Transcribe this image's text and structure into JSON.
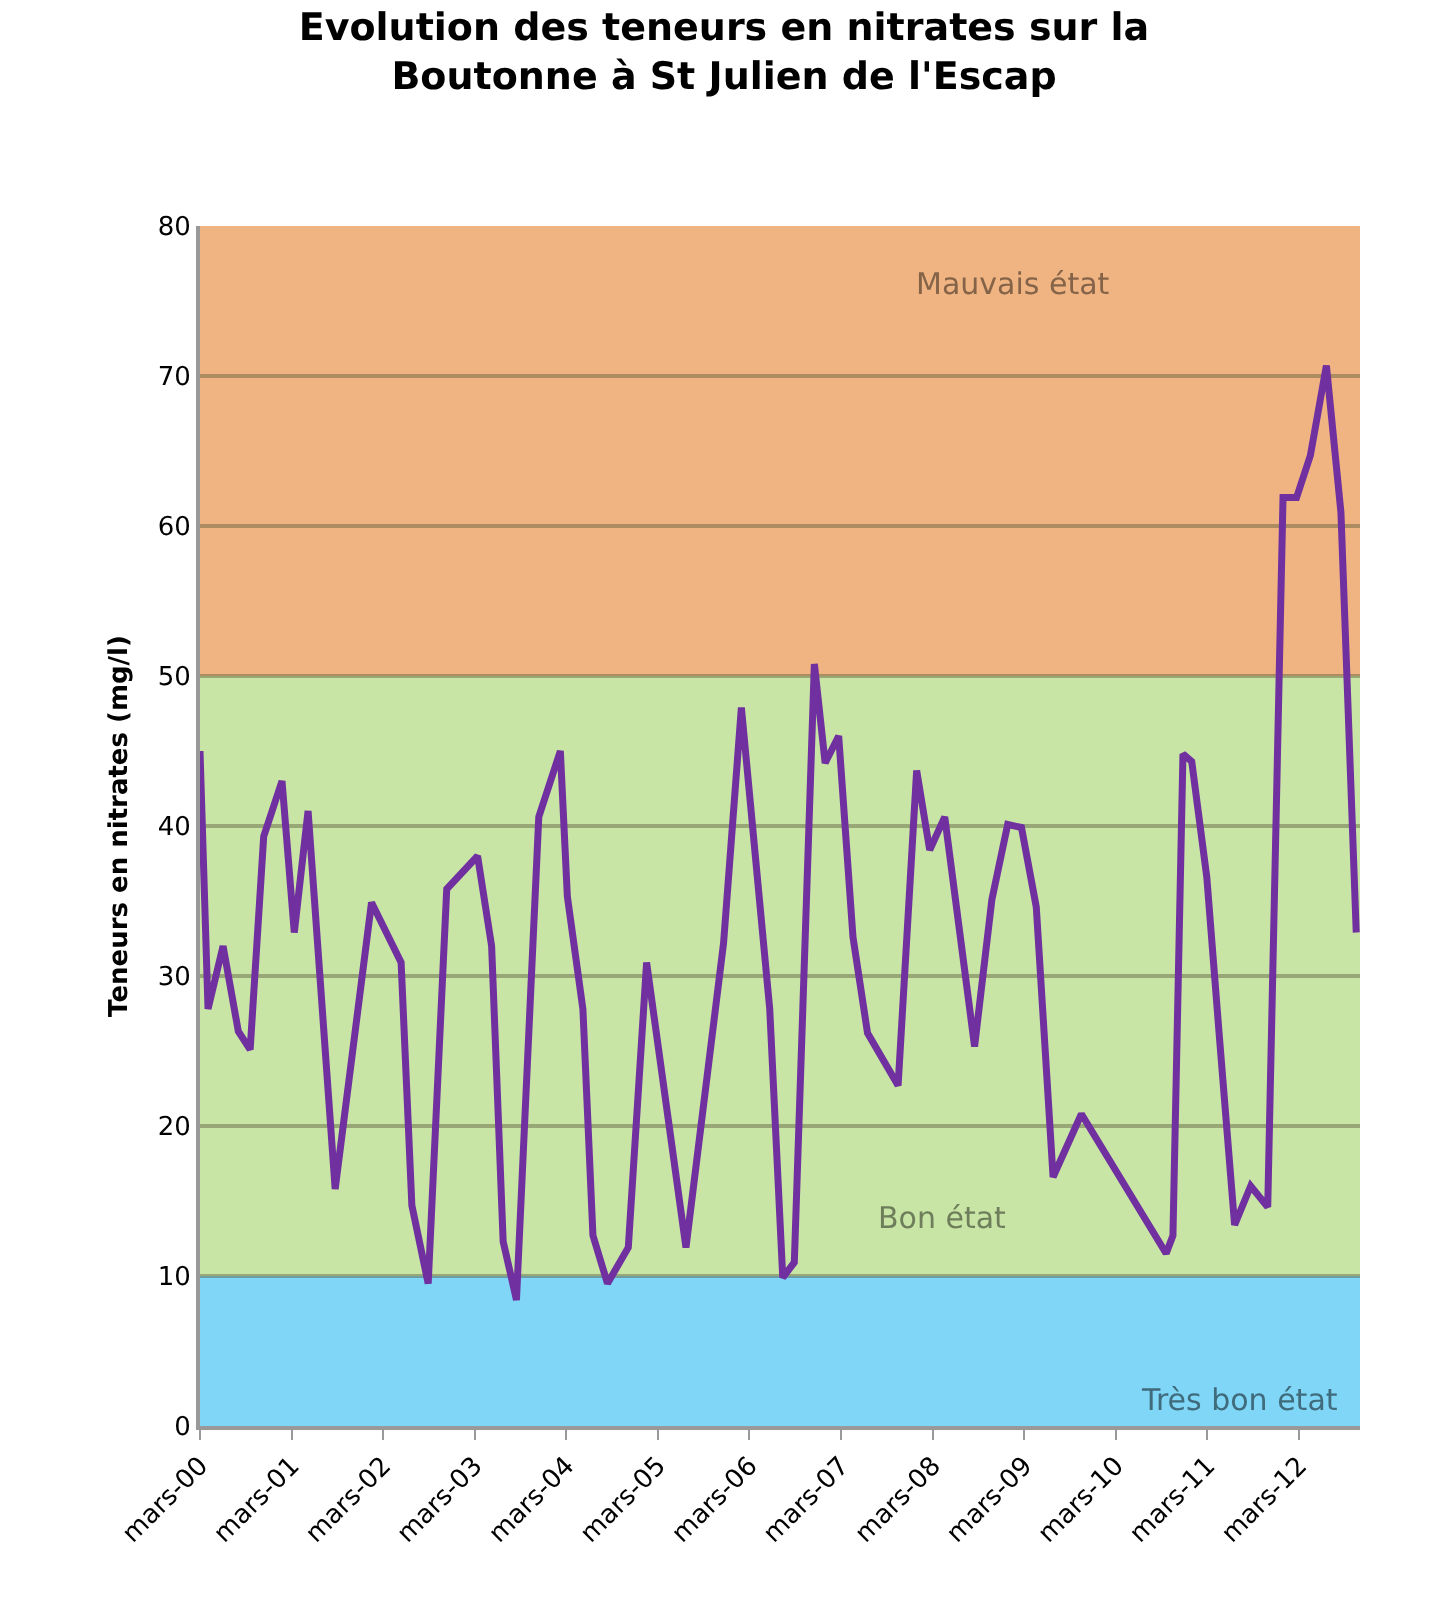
{
  "chart_data": {
    "type": "line",
    "title": "Evolution des teneurs en nitrates sur la Boutonne à St Julien de l'Escap",
    "ylabel": "Teneurs en nitrates (mg/l)",
    "x": [
      "2000-03-01",
      "2000-04-02",
      "2000-06-01",
      "2000-08-01",
      "2000-09-17",
      "2000-11-10",
      "2001-01-22",
      "2001-03-12",
      "2001-05-06",
      "2001-08-22",
      "2002-01-14",
      "2002-05-12",
      "2002-06-24",
      "2002-08-28",
      "2002-11-10",
      "2003-03-13",
      "2003-05-08",
      "2003-06-23",
      "2003-08-15",
      "2003-11-12",
      "2004-02-06",
      "2004-03-05",
      "2004-05-06",
      "2004-06-15",
      "2004-08-12",
      "2004-11-03",
      "2005-01-15",
      "2005-06-21",
      "2005-11-18",
      "2006-01-28",
      "2006-05-21",
      "2006-07-12",
      "2006-08-27",
      "2006-11-15",
      "2006-12-28",
      "2007-02-20",
      "2007-04-18",
      "2007-06-15",
      "2007-10-15",
      "2007-12-28",
      "2008-02-18",
      "2008-04-18",
      "2008-08-15",
      "2008-10-23",
      "2008-12-25",
      "2009-02-18",
      "2009-04-18",
      "2009-06-24",
      "2009-10-15",
      "2010-09-18",
      "2010-10-15",
      "2010-11-24",
      "2010-12-29",
      "2011-02-27",
      "2011-04-18",
      "2011-06-18",
      "2011-08-21",
      "2011-10-28",
      "2011-12-28",
      "2012-02-20",
      "2012-04-15",
      "2012-06-18",
      "2012-08-15",
      "2012-10-15"
    ],
    "series": [
      {
        "color": "#7030a0",
        "values": [
          45.0,
          27.8,
          32.0,
          26.3,
          25.1,
          39.3,
          43.0,
          32.9,
          41.0,
          15.8,
          34.9,
          30.9,
          14.7,
          9.5,
          35.8,
          38.0,
          32.0,
          12.3,
          8.4,
          40.6,
          45.0,
          35.3,
          27.8,
          12.7,
          9.5,
          11.9,
          30.9,
          11.9,
          32.2,
          47.9,
          27.8,
          9.9,
          10.9,
          50.8,
          44.2,
          46.0,
          32.6,
          26.2,
          22.7,
          43.7,
          38.4,
          40.6,
          25.3,
          35.1,
          40.1,
          39.9,
          34.6,
          16.6,
          20.8,
          11.5,
          12.7,
          44.8,
          44.3,
          36.6,
          26.0,
          13.4,
          16.0,
          14.6,
          61.9,
          61.9,
          64.7,
          70.7,
          60.9,
          32.9
        ]
      }
    ],
    "xlim": [
      "2000-03-01",
      "2012-10-30"
    ],
    "xticks": [
      {
        "value": "2000-03-01",
        "label": "mars-00"
      },
      {
        "value": "2001-03-01",
        "label": "mars-01"
      },
      {
        "value": "2002-03-01",
        "label": "mars-02"
      },
      {
        "value": "2003-03-01",
        "label": "mars-03"
      },
      {
        "value": "2004-03-01",
        "label": "mars-04"
      },
      {
        "value": "2005-03-01",
        "label": "mars-05"
      },
      {
        "value": "2006-03-01",
        "label": "mars-06"
      },
      {
        "value": "2007-03-01",
        "label": "mars-07"
      },
      {
        "value": "2008-03-01",
        "label": "mars-08"
      },
      {
        "value": "2009-03-01",
        "label": "mars-09"
      },
      {
        "value": "2010-03-01",
        "label": "mars-10"
      },
      {
        "value": "2011-03-01",
        "label": "mars-11"
      },
      {
        "value": "2012-03-01",
        "label": "mars-12"
      }
    ],
    "ylim": [
      0,
      80
    ],
    "yticks": [
      0,
      10,
      20,
      30,
      40,
      50,
      60,
      70,
      80
    ],
    "bands": [
      {
        "axis": "y",
        "from": 0,
        "to": 10,
        "label": "Très bon état",
        "color": "#7fd6f7"
      },
      {
        "axis": "y",
        "from": 10,
        "to": 50,
        "label": "Bon état",
        "color": "#c8e5a6"
      },
      {
        "axis": "y",
        "from": 50,
        "to": 80,
        "label": "Mauvais état",
        "color": "#f0b482"
      }
    ],
    "grid": "y",
    "marker": "none",
    "line_style": "solid"
  }
}
